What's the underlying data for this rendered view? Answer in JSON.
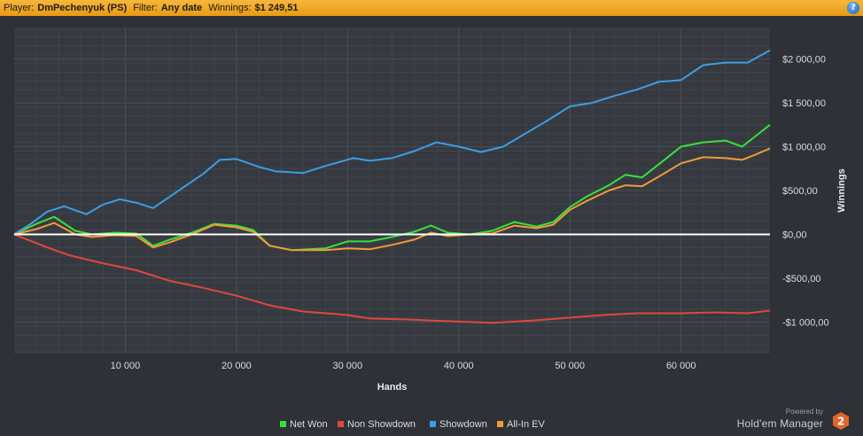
{
  "header": {
    "player_label": "Player:",
    "player": "DmPechenyuk (PS)",
    "filter_label": "Filter:",
    "filter": "Any date",
    "winnings_label": "Winnings:",
    "winnings": "$1 249,51",
    "help_icon": "?"
  },
  "chart_data": {
    "type": "line",
    "xlabel": "Hands",
    "ylabel": "Winnings",
    "xlim": [
      0,
      68000
    ],
    "ylim": [
      -1350,
      2350
    ],
    "x_ticks": [
      10000,
      20000,
      30000,
      40000,
      50000,
      60000
    ],
    "x_tick_labels": [
      "10 000",
      "20 000",
      "30 000",
      "40 000",
      "50 000",
      "60 000"
    ],
    "y_ticks": [
      -1000,
      -500,
      0,
      500,
      1000,
      1500,
      2000
    ],
    "y_tick_labels": [
      "-$1 000,00",
      "-$500,00",
      "$0,00",
      "$500,00",
      "$1 000,00",
      "$1 500,00",
      "$2 000,00"
    ],
    "grid": true,
    "legend_position": "bottom",
    "series": [
      {
        "name": "Net Won",
        "color": "#39e03a",
        "x": [
          0,
          2000,
          3600,
          5500,
          7000,
          9000,
          11000,
          12500,
          14000,
          16000,
          18000,
          20000,
          21500,
          23000,
          25000,
          28000,
          30000,
          32000,
          34000,
          36000,
          37500,
          39000,
          41000,
          43000,
          45000,
          47000,
          48500,
          50000,
          51500,
          53500,
          55000,
          56500,
          58000,
          60000,
          62000,
          64000,
          65500,
          66500,
          68000
        ],
        "values": [
          0,
          120,
          200,
          40,
          0,
          20,
          10,
          -130,
          -60,
          20,
          120,
          100,
          50,
          -130,
          -180,
          -160,
          -80,
          -80,
          -30,
          30,
          100,
          20,
          0,
          40,
          140,
          90,
          140,
          310,
          430,
          560,
          680,
          650,
          800,
          1000,
          1050,
          1070,
          1000,
          1100,
          1250
        ]
      },
      {
        "name": "Non Showdown",
        "color": "#e2463f",
        "x": [
          0,
          1000,
          3000,
          5000,
          8000,
          11000,
          14000,
          17000,
          20000,
          23000,
          26000,
          30000,
          32000,
          35000,
          39000,
          43000,
          47000,
          50000,
          53000,
          56000,
          60000,
          63000,
          66000,
          68000
        ],
        "values": [
          0,
          -50,
          -150,
          -240,
          -330,
          -410,
          -530,
          -610,
          -700,
          -810,
          -880,
          -920,
          -960,
          -970,
          -990,
          -1010,
          -980,
          -950,
          -920,
          -900,
          -900,
          -890,
          -900,
          -870
        ]
      },
      {
        "name": "Showdown",
        "color": "#3c9ee3",
        "x": [
          0,
          1500,
          3000,
          4500,
          6500,
          8000,
          9500,
          11000,
          12500,
          14000,
          15500,
          17000,
          18500,
          20000,
          22000,
          23500,
          26000,
          28000,
          30500,
          32000,
          34000,
          36000,
          38000,
          40000,
          42000,
          44000,
          46000,
          48000,
          50000,
          52000,
          54000,
          56000,
          58000,
          60000,
          62000,
          64000,
          66000,
          68000
        ],
        "values": [
          0,
          120,
          260,
          320,
          230,
          340,
          400,
          360,
          300,
          430,
          560,
          690,
          850,
          860,
          770,
          720,
          700,
          780,
          870,
          840,
          870,
          950,
          1050,
          1000,
          940,
          1000,
          1150,
          1300,
          1460,
          1500,
          1580,
          1650,
          1740,
          1760,
          1930,
          1960,
          1960,
          2100
        ]
      },
      {
        "name": "All-In EV",
        "color": "#f49a39",
        "x": [
          0,
          2000,
          3600,
          5500,
          7000,
          9000,
          11000,
          12500,
          14000,
          16000,
          18000,
          20000,
          21500,
          23000,
          25000,
          28000,
          30000,
          32000,
          34000,
          36000,
          37500,
          39000,
          41000,
          43000,
          45000,
          47000,
          48500,
          50000,
          51500,
          53500,
          55000,
          56500,
          58000,
          60000,
          62000,
          64000,
          65500,
          66500,
          68000
        ],
        "values": [
          0,
          60,
          130,
          0,
          -30,
          -10,
          -20,
          -150,
          -90,
          0,
          110,
          80,
          30,
          -130,
          -180,
          -180,
          -160,
          -170,
          -120,
          -60,
          20,
          -20,
          0,
          10,
          100,
          70,
          110,
          280,
          380,
          500,
          560,
          550,
          660,
          810,
          880,
          870,
          850,
          900,
          980
        ]
      }
    ]
  },
  "footer": {
    "powered_by": "Powered by",
    "product": "Hold'em Manager",
    "logo_glyph": "2"
  }
}
